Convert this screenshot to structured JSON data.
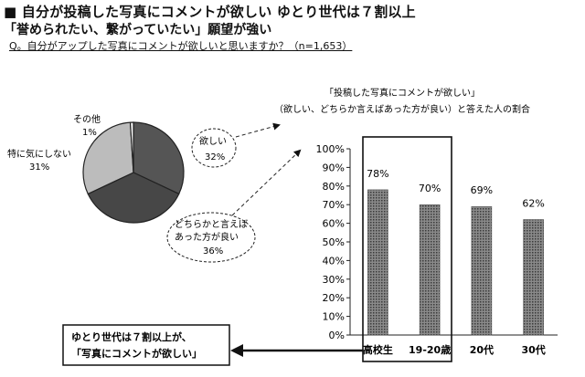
{
  "header": {
    "title_line1": "■ 自分が投稿した写真にコメントが欲しい ゆとり世代は７割以上",
    "title_line2": "「誉められたい、繋がっていたい」願望が強い",
    "question": "Q。自分がアップした写真にコメントが欲しいと思いますか？（n=1,653）"
  },
  "chart_data": [
    {
      "type": "pie",
      "slices": [
        {
          "label": "欲しい",
          "value": 32,
          "value_label": "32%",
          "color": "#555555"
        },
        {
          "label": "どちらかと言えば あった方が良い",
          "label_lines": [
            "どちらかと言えば",
            "あった方が良い"
          ],
          "value": 36,
          "value_label": "36%",
          "color": "#474747"
        },
        {
          "label": "特に気にしない",
          "value": 31,
          "value_label": "31%",
          "color": "#bcbcbc"
        },
        {
          "label": "その他",
          "value": 1,
          "value_label": "1%",
          "color": "#ffffff"
        }
      ]
    },
    {
      "type": "bar",
      "title_lines": [
        "「投稿した写真にコメントが欲しい」",
        "（欲しい、どちらか言えばあった方が良い）と答えた人の割合"
      ],
      "categories": [
        "高校生",
        "19-20歳",
        "20代",
        "30代"
      ],
      "values": [
        78,
        70,
        69,
        62
      ],
      "value_labels": [
        "78%",
        "70%",
        "69%",
        "62%"
      ],
      "ylim": [
        0,
        100
      ],
      "yticks": [
        "0%",
        "10%",
        "20%",
        "30%",
        "40%",
        "50%",
        "60%",
        "70%",
        "80%",
        "90%",
        "100%"
      ],
      "bar_color": "#6e6e6e",
      "highlighted_categories": [
        "高校生",
        "19-20歳"
      ]
    }
  ],
  "callout": {
    "lines": [
      "ゆとり世代は７割以上が、",
      "「写真にコメントが欲しい」"
    ]
  }
}
